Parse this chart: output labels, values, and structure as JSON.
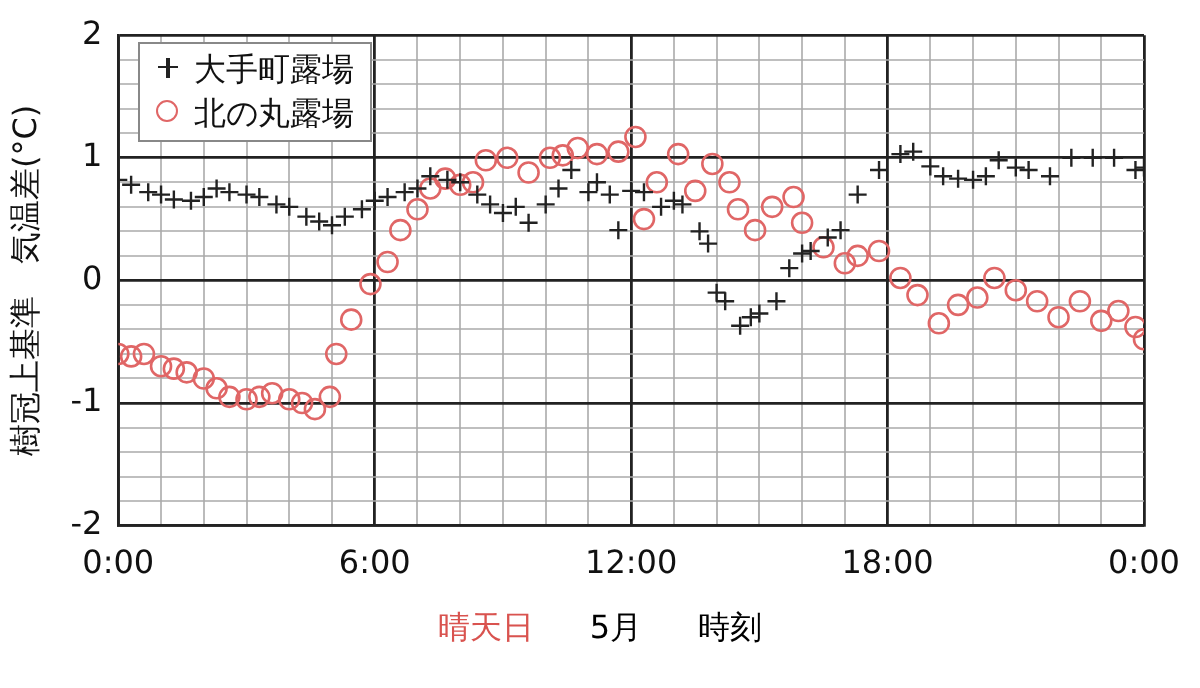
{
  "chart_data": {
    "type": "scatter",
    "xlabel": "時刻",
    "ylabel": "樹冠上基準　気温差(°C)",
    "annotations": [
      "晴天日",
      "5月"
    ],
    "xlim": [
      0,
      24
    ],
    "ylim": [
      -2,
      2
    ],
    "xticks": [
      {
        "value": 0,
        "label": "0:00"
      },
      {
        "value": 1,
        "label": null
      },
      {
        "value": 2,
        "label": null
      },
      {
        "value": 3,
        "label": null
      },
      {
        "value": 4,
        "label": null
      },
      {
        "value": 5,
        "label": null
      },
      {
        "value": 6,
        "label": "6:00"
      },
      {
        "value": 7,
        "label": null
      },
      {
        "value": 8,
        "label": null
      },
      {
        "value": 9,
        "label": null
      },
      {
        "value": 10,
        "label": null
      },
      {
        "value": 11,
        "label": null
      },
      {
        "value": 12,
        "label": "12:00"
      },
      {
        "value": 13,
        "label": null
      },
      {
        "value": 14,
        "label": null
      },
      {
        "value": 15,
        "label": null
      },
      {
        "value": 16,
        "label": null
      },
      {
        "value": 17,
        "label": null
      },
      {
        "value": 18,
        "label": "18:00"
      },
      {
        "value": 19,
        "label": null
      },
      {
        "value": 20,
        "label": null
      },
      {
        "value": 21,
        "label": null
      },
      {
        "value": 22,
        "label": null
      },
      {
        "value": 23,
        "label": null
      },
      {
        "value": 24,
        "label": "0:00"
      }
    ],
    "yticks": [
      -2,
      {
        "value": -1.8,
        "label": null
      },
      {
        "value": -1.6,
        "label": null
      },
      {
        "value": -1.4,
        "label": null
      },
      {
        "value": -1.2,
        "label": null
      },
      -1,
      {
        "value": -0.8,
        "label": null
      },
      {
        "value": -0.6,
        "label": null
      },
      {
        "value": -0.4,
        "label": null
      },
      {
        "value": -0.2,
        "label": null
      },
      0,
      {
        "value": 0.2,
        "label": null
      },
      {
        "value": 0.4,
        "label": null
      },
      {
        "value": 0.6,
        "label": null
      },
      {
        "value": 0.8,
        "label": null
      },
      1,
      {
        "value": 1.2,
        "label": null
      },
      {
        "value": 1.4,
        "label": null
      },
      {
        "value": 1.6,
        "label": null
      },
      {
        "value": 1.8,
        "label": null
      },
      2
    ],
    "grid": true,
    "legend": "top left",
    "series": [
      {
        "name": "大手町露場",
        "color": "#222222",
        "marker": "cross",
        "x": [
          0,
          0.3,
          0.7,
          1,
          1.3,
          1.7,
          2,
          2.3,
          2.6,
          3,
          3.3,
          3.7,
          4,
          4.4,
          4.7,
          5,
          5.3,
          5.7,
          6,
          6.3,
          6.7,
          7,
          7.3,
          7.7,
          8,
          8.4,
          8.7,
          9,
          9.3,
          9.6,
          10,
          10.3,
          10.6,
          11,
          11.2,
          11.5,
          11.7,
          12,
          12.3,
          12.7,
          13,
          13.2,
          13.6,
          13.8,
          14,
          14.2,
          14.55,
          14.8,
          15,
          15.4,
          15.7,
          16,
          16.2,
          16.6,
          16.9,
          17.3,
          17.8,
          18.3,
          18.6,
          19,
          19.3,
          19.65,
          20,
          20.3,
          20.6,
          21,
          21.3,
          21.8,
          22.3,
          22.8,
          23.3,
          23.8,
          24
        ],
        "values": [
          0.82,
          0.78,
          0.72,
          0.7,
          0.66,
          0.65,
          0.68,
          0.75,
          0.72,
          0.7,
          0.68,
          0.62,
          0.6,
          0.52,
          0.48,
          0.45,
          0.52,
          0.58,
          0.65,
          0.68,
          0.72,
          0.75,
          0.85,
          0.82,
          0.8,
          0.7,
          0.62,
          0.55,
          0.6,
          0.47,
          0.62,
          0.75,
          0.9,
          0.72,
          0.8,
          0.7,
          0.41,
          0.73,
          0.72,
          0.6,
          0.65,
          0.62,
          0.4,
          0.3,
          -0.1,
          -0.17,
          -0.37,
          -0.3,
          -0.27,
          -0.17,
          0.1,
          0.22,
          0.24,
          0.35,
          0.41,
          0.7,
          0.9,
          1.03,
          1.05,
          0.93,
          0.85,
          0.83,
          0.82,
          0.85,
          0.98,
          0.92,
          0.9,
          0.85,
          1,
          1.0,
          1.0,
          0.9,
          0.92
        ]
      },
      {
        "name": "北の丸露場",
        "color": "#e06666",
        "marker": "circle",
        "x": [
          0,
          0.3,
          0.6,
          1,
          1.3,
          1.6,
          2,
          2.3,
          2.6,
          3,
          3.3,
          3.6,
          4,
          4.3,
          4.6,
          4.95,
          5.1,
          5.45,
          5.9,
          6.3,
          6.6,
          7,
          7.3,
          7.65,
          8,
          8.3,
          8.6,
          9.1,
          9.6,
          10.1,
          10.4,
          10.75,
          11.2,
          11.7,
          12.1,
          12.3,
          12.6,
          13.1,
          13.5,
          13.9,
          14.3,
          14.5,
          14.9,
          15.3,
          15.8,
          16,
          16.5,
          17,
          17.3,
          17.8,
          18.3,
          18.7,
          19.2,
          19.65,
          20.1,
          20.5,
          21,
          21.5,
          22,
          22.5,
          23,
          23.4,
          23.8,
          24
        ],
        "values": [
          -0.6,
          -0.62,
          -0.6,
          -0.7,
          -0.72,
          -0.75,
          -0.8,
          -0.88,
          -0.95,
          -0.97,
          -0.95,
          -0.92,
          -0.97,
          -1.0,
          -1.05,
          -0.95,
          -0.6,
          -0.32,
          -0.03,
          0.15,
          0.41,
          0.58,
          0.75,
          0.83,
          0.78,
          0.8,
          0.98,
          1.0,
          0.88,
          1.0,
          1.02,
          1.08,
          1.03,
          1.05,
          1.17,
          0.5,
          0.8,
          1.03,
          0.73,
          0.95,
          0.8,
          0.58,
          0.41,
          0.6,
          0.68,
          0.47,
          0.27,
          0.14,
          0.2,
          0.24,
          0.02,
          -0.12,
          -0.35,
          -0.2,
          -0.14,
          0.02,
          -0.08,
          -0.17,
          -0.3,
          -0.17,
          -0.33,
          -0.25,
          -0.38,
          -0.48
        ]
      }
    ]
  }
}
